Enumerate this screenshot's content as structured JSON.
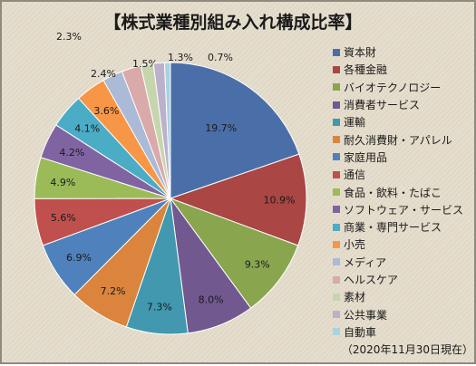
{
  "title": "【株式業種別組み入れ構成比率】",
  "date_note": "（2020年11月30日現在）",
  "chart_data": {
    "type": "pie",
    "unit": "%",
    "slices": [
      {
        "label": "資本財",
        "value": 19.7,
        "color": "#4a6fa8"
      },
      {
        "label": "各種金融",
        "value": 10.9,
        "color": "#aa4643"
      },
      {
        "label": "バイオテクノロジー",
        "value": 9.3,
        "color": "#89a54e"
      },
      {
        "label": "消費者サービス",
        "value": 8.0,
        "color": "#71588f"
      },
      {
        "label": "運輸",
        "value": 7.3,
        "color": "#4198af"
      },
      {
        "label": "耐久消費財・アパレル",
        "value": 7.2,
        "color": "#db843d"
      },
      {
        "label": "家庭用品",
        "value": 6.9,
        "color": "#4f81bd"
      },
      {
        "label": "通信",
        "value": 5.6,
        "color": "#c0504d"
      },
      {
        "label": "食品・飲料・たばこ",
        "value": 4.9,
        "color": "#9bbb59"
      },
      {
        "label": "ソフトウェア・サービス",
        "value": 4.2,
        "color": "#8064a2"
      },
      {
        "label": "商業・専門サービス",
        "value": 4.1,
        "color": "#4bacc6"
      },
      {
        "label": "小売",
        "value": 3.6,
        "color": "#f79646"
      },
      {
        "label": "メディア",
        "value": 2.4,
        "color": "#aabad7"
      },
      {
        "label": "ヘルスケア",
        "value": 2.3,
        "color": "#d9aaa9"
      },
      {
        "label": "素材",
        "value": 1.5,
        "color": "#c6d6ac"
      },
      {
        "label": "公共事業",
        "value": 1.3,
        "color": "#bcb0cc"
      },
      {
        "label": "自動車",
        "value": 0.7,
        "color": "#a8d3e1"
      }
    ]
  }
}
